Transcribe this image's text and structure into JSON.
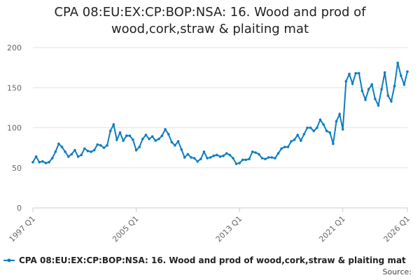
{
  "chart_data": {
    "type": "line",
    "title": "CPA 08:EU:EX:CP:BOP:NSA: 16. Wood and prod of wood,cork,straw & plaiting mat",
    "source": "Source:",
    "categories": [
      "1997 Q1",
      null,
      null,
      null,
      null,
      null,
      null,
      null,
      null,
      null,
      null,
      null,
      null,
      null,
      null,
      null,
      null,
      null,
      null,
      null,
      null,
      null,
      null,
      null,
      null,
      null,
      null,
      null,
      null,
      null,
      null,
      null,
      "2005 Q1",
      null,
      null,
      null,
      null,
      null,
      null,
      null,
      null,
      null,
      null,
      null,
      null,
      null,
      null,
      null,
      null,
      null,
      null,
      null,
      null,
      null,
      null,
      null,
      null,
      null,
      null,
      null,
      null,
      null,
      null,
      null,
      "2013 Q1",
      null,
      null,
      null,
      null,
      null,
      null,
      null,
      null,
      null,
      null,
      null,
      null,
      null,
      null,
      null,
      null,
      null,
      null,
      null,
      null,
      null,
      null,
      null,
      null,
      null,
      null,
      null,
      null,
      null,
      null,
      null,
      "2021 Q1",
      null,
      null,
      null,
      null,
      null,
      null,
      null,
      null,
      null,
      null,
      null,
      null,
      null,
      null,
      null,
      null,
      null,
      null,
      null,
      "2026 Q1"
    ],
    "series": [
      {
        "name": "CPA 08:EU:EX:CP:BOP:NSA: 16. Wood and prod of wood,cork,straw & plaiting mat",
        "color": "#0e7dc0",
        "values": [
          57,
          64,
          57,
          58,
          56,
          57,
          62,
          70,
          80,
          76,
          70,
          64,
          67,
          72,
          64,
          66,
          74,
          71,
          70,
          72,
          79,
          78,
          75,
          78,
          96,
          104,
          85,
          94,
          84,
          90,
          90,
          85,
          72,
          76,
          86,
          91,
          86,
          89,
          84,
          86,
          90,
          98,
          92,
          82,
          78,
          83,
          73,
          63,
          67,
          63,
          62,
          58,
          61,
          70,
          62,
          63,
          65,
          66,
          64,
          65,
          68,
          66,
          62,
          55,
          56,
          60,
          60,
          61,
          70,
          69,
          67,
          62,
          61,
          63,
          63,
          62,
          68,
          74,
          76,
          76,
          83,
          85,
          91,
          84,
          92,
          100,
          100,
          96,
          100,
          110,
          104,
          96,
          94,
          80,
          108,
          117,
          98,
          158,
          167,
          155,
          168,
          168,
          146,
          135,
          148,
          154,
          136,
          128,
          148,
          169,
          140,
          133,
          152,
          181,
          165,
          154,
          170
        ]
      }
    ],
    "ylim": [
      0,
      200
    ],
    "yticks": [
      0,
      50,
      100,
      150,
      200
    ],
    "grid": true
  }
}
